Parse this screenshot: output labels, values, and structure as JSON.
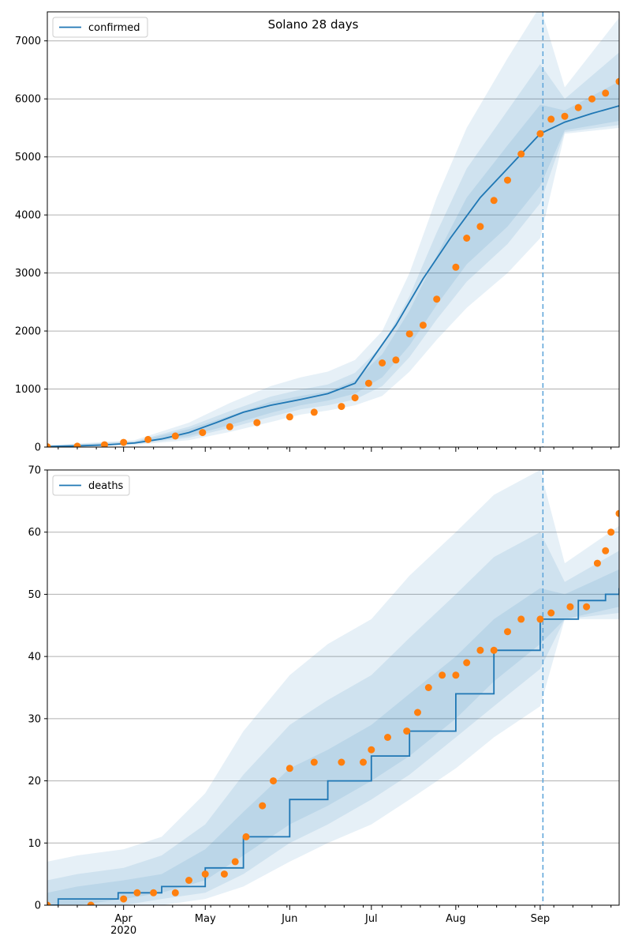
{
  "title": "Solano 28 days",
  "colors": {
    "model_line": "#1f77b4",
    "band": "#1f77b4",
    "observed": "#ff7f0e",
    "forecast_divider": "#5ba3d9",
    "grid": "#b0b0b0"
  },
  "chart_data": [
    {
      "type": "line",
      "panel": "top",
      "title": "Solano 28 days",
      "legend": {
        "label": "confirmed",
        "position": "top-left"
      },
      "xlim": [
        "2020-03-04",
        "2020-09-30"
      ],
      "ylim": [
        0,
        7500
      ],
      "yticks": [
        0,
        1000,
        2000,
        3000,
        4000,
        5000,
        6000,
        7000
      ],
      "grid": "horizontal",
      "forecast_start": "2020-09-02",
      "model_median": {
        "x": [
          "2020-03-04",
          "2020-03-15",
          "2020-03-25",
          "2020-04-05",
          "2020-04-15",
          "2020-04-25",
          "2020-05-05",
          "2020-05-15",
          "2020-05-25",
          "2020-06-05",
          "2020-06-15",
          "2020-06-25",
          "2020-07-01",
          "2020-07-10",
          "2020-07-20",
          "2020-07-30",
          "2020-08-10",
          "2020-08-20",
          "2020-09-01",
          "2020-09-10",
          "2020-09-20",
          "2020-09-30"
        ],
        "y": [
          10,
          20,
          35,
          70,
          140,
          250,
          420,
          600,
          720,
          820,
          920,
          1100,
          1500,
          2100,
          2900,
          3600,
          4300,
          4800,
          5400,
          5600,
          5750,
          5880
        ]
      },
      "bands": [
        {
          "x": [
            "2020-03-04",
            "2020-04-05",
            "2020-04-25",
            "2020-05-10",
            "2020-05-25",
            "2020-06-05",
            "2020-06-15",
            "2020-06-25",
            "2020-07-05",
            "2020-07-15",
            "2020-07-25",
            "2020-08-05",
            "2020-08-20",
            "2020-09-01",
            "2020-09-10",
            "2020-09-30"
          ],
          "lower": [
            0,
            40,
            120,
            260,
            430,
            560,
            630,
            720,
            880,
            1300,
            1850,
            2400,
            3000,
            3600,
            5400,
            5500
          ],
          "upper": [
            30,
            120,
            420,
            760,
            1050,
            1200,
            1300,
            1500,
            2000,
            3000,
            4300,
            5500,
            6700,
            7600,
            6200,
            7400
          ]
        },
        {
          "x": [
            "2020-03-04",
            "2020-04-05",
            "2020-04-25",
            "2020-05-10",
            "2020-05-25",
            "2020-06-05",
            "2020-06-15",
            "2020-06-25",
            "2020-07-05",
            "2020-07-15",
            "2020-07-25",
            "2020-08-05",
            "2020-08-20",
            "2020-09-01",
            "2020-09-10",
            "2020-09-30"
          ],
          "lower": [
            0,
            50,
            160,
            330,
            520,
            650,
            720,
            820,
            1050,
            1550,
            2200,
            2850,
            3500,
            4200,
            5430,
            5550
          ],
          "upper": [
            25,
            100,
            350,
            620,
            870,
            990,
            1080,
            1280,
            1750,
            2600,
            3700,
            4800,
            5800,
            6600,
            6000,
            6800
          ]
        },
        {
          "x": [
            "2020-03-04",
            "2020-04-05",
            "2020-04-25",
            "2020-05-10",
            "2020-05-25",
            "2020-06-05",
            "2020-06-15",
            "2020-06-25",
            "2020-07-05",
            "2020-07-15",
            "2020-07-25",
            "2020-08-05",
            "2020-08-20",
            "2020-09-01",
            "2020-09-10",
            "2020-09-30"
          ],
          "lower": [
            0,
            60,
            190,
            380,
            590,
            720,
            800,
            920,
            1200,
            1750,
            2450,
            3150,
            3800,
            4500,
            5460,
            5620
          ],
          "upper": [
            20,
            90,
            310,
            540,
            780,
            880,
            960,
            1150,
            1600,
            2350,
            3300,
            4300,
            5200,
            5900,
            5800,
            6300
          ]
        }
      ],
      "observed": {
        "x": [
          "2020-03-04",
          "2020-03-15",
          "2020-03-25",
          "2020-04-01",
          "2020-04-10",
          "2020-04-20",
          "2020-04-30",
          "2020-05-10",
          "2020-05-20",
          "2020-06-01",
          "2020-06-10",
          "2020-06-20",
          "2020-06-25",
          "2020-06-30",
          "2020-07-05",
          "2020-07-10",
          "2020-07-15",
          "2020-07-20",
          "2020-07-25",
          "2020-08-01",
          "2020-08-05",
          "2020-08-10",
          "2020-08-15",
          "2020-08-20",
          "2020-08-25",
          "2020-09-01",
          "2020-09-05",
          "2020-09-10",
          "2020-09-15",
          "2020-09-20",
          "2020-09-25",
          "2020-09-30"
        ],
        "y": [
          5,
          15,
          40,
          80,
          130,
          190,
          250,
          350,
          420,
          520,
          600,
          700,
          850,
          1100,
          1450,
          1500,
          1950,
          2100,
          2550,
          3100,
          3600,
          3800,
          4250,
          4600,
          5050,
          5400,
          5650,
          5700,
          5850,
          6000,
          6100,
          6300
        ]
      }
    },
    {
      "type": "line",
      "panel": "bottom",
      "legend": {
        "label": "deaths",
        "position": "top-left"
      },
      "xlim": [
        "2020-03-04",
        "2020-09-30"
      ],
      "ylim": [
        0,
        70
      ],
      "yticks": [
        0,
        10,
        20,
        30,
        40,
        50,
        60,
        70
      ],
      "xticks": [
        {
          "date": "2020-04-01",
          "label": "Apr",
          "sublabel": "2020"
        },
        {
          "date": "2020-05-01",
          "label": "May"
        },
        {
          "date": "2020-06-01",
          "label": "Jun"
        },
        {
          "date": "2020-07-01",
          "label": "Jul"
        },
        {
          "date": "2020-08-01",
          "label": "Aug"
        },
        {
          "date": "2020-09-01",
          "label": "Sep"
        }
      ],
      "grid": "horizontal",
      "forecast_start": "2020-09-02",
      "model_median": {
        "x": [
          "2020-03-04",
          "2020-03-08",
          "2020-03-30",
          "2020-04-15",
          "2020-05-01",
          "2020-05-15",
          "2020-06-01",
          "2020-06-15",
          "2020-07-01",
          "2020-07-15",
          "2020-08-01",
          "2020-08-15",
          "2020-09-01",
          "2020-09-15",
          "2020-09-25",
          "2020-09-30"
        ],
        "y": [
          0,
          1,
          2,
          3,
          6,
          11,
          17,
          20,
          24,
          28,
          34,
          41,
          46,
          49,
          50,
          51
        ]
      },
      "bands": [
        {
          "x": [
            "2020-03-04",
            "2020-03-15",
            "2020-04-01",
            "2020-04-15",
            "2020-05-01",
            "2020-05-15",
            "2020-06-01",
            "2020-06-15",
            "2020-07-01",
            "2020-07-15",
            "2020-08-01",
            "2020-08-15",
            "2020-09-01",
            "2020-09-10",
            "2020-09-30"
          ],
          "lower": [
            0,
            0,
            0,
            0,
            1,
            3,
            7,
            10,
            13,
            17,
            22,
            27,
            32,
            46,
            46
          ],
          "upper": [
            7,
            8,
            9,
            11,
            18,
            28,
            37,
            42,
            46,
            53,
            60,
            66,
            70,
            55,
            61
          ]
        },
        {
          "x": [
            "2020-03-04",
            "2020-03-15",
            "2020-04-01",
            "2020-04-15",
            "2020-05-01",
            "2020-05-15",
            "2020-06-01",
            "2020-06-15",
            "2020-07-01",
            "2020-07-15",
            "2020-08-01",
            "2020-08-15",
            "2020-09-01",
            "2020-09-10",
            "2020-09-30"
          ],
          "lower": [
            0,
            0,
            0,
            1,
            2,
            5,
            10,
            13,
            17,
            21,
            27,
            32,
            38,
            46,
            47
          ],
          "upper": [
            4,
            5,
            6,
            8,
            13,
            21,
            29,
            33,
            37,
            43,
            50,
            56,
            60,
            52,
            57
          ]
        },
        {
          "x": [
            "2020-03-04",
            "2020-03-15",
            "2020-04-01",
            "2020-04-15",
            "2020-05-01",
            "2020-05-15",
            "2020-06-01",
            "2020-06-15",
            "2020-07-01",
            "2020-07-15",
            "2020-08-01",
            "2020-08-15",
            "2020-09-01",
            "2020-09-10",
            "2020-09-30"
          ],
          "lower": [
            0,
            0,
            1,
            2,
            4,
            8,
            13,
            16,
            20,
            24,
            30,
            36,
            42,
            46,
            48
          ],
          "upper": [
            2,
            3,
            4,
            5,
            9,
            15,
            22,
            25,
            29,
            34,
            40,
            46,
            51,
            50,
            54
          ]
        }
      ],
      "observed": {
        "x": [
          "2020-03-04",
          "2020-03-20",
          "2020-04-01",
          "2020-04-06",
          "2020-04-12",
          "2020-04-20",
          "2020-04-25",
          "2020-05-01",
          "2020-05-08",
          "2020-05-12",
          "2020-05-16",
          "2020-05-22",
          "2020-05-26",
          "2020-06-01",
          "2020-06-10",
          "2020-06-20",
          "2020-06-28",
          "2020-07-01",
          "2020-07-07",
          "2020-07-14",
          "2020-07-18",
          "2020-07-22",
          "2020-07-27",
          "2020-08-01",
          "2020-08-05",
          "2020-08-10",
          "2020-08-15",
          "2020-08-20",
          "2020-08-25",
          "2020-09-01",
          "2020-09-05",
          "2020-09-12",
          "2020-09-18",
          "2020-09-22",
          "2020-09-25",
          "2020-09-27",
          "2020-09-30"
        ],
        "y": [
          0,
          0,
          1,
          2,
          2,
          2,
          4,
          5,
          5,
          7,
          11,
          16,
          20,
          22,
          23,
          23,
          23,
          25,
          27,
          28,
          31,
          35,
          37,
          37,
          39,
          41,
          41,
          44,
          46,
          46,
          47,
          48,
          48,
          55,
          57,
          60,
          63
        ]
      }
    }
  ]
}
